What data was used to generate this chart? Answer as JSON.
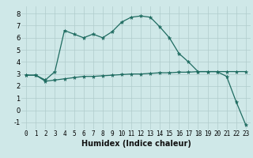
{
  "title": "",
  "xlabel": "Humidex (Indice chaleur)",
  "background_color": "#cfe8e8",
  "line_color": "#1e6b60",
  "x_ticks": [
    0,
    1,
    2,
    3,
    4,
    5,
    6,
    7,
    8,
    9,
    10,
    11,
    12,
    13,
    14,
    15,
    16,
    17,
    18,
    19,
    20,
    21,
    22,
    23
  ],
  "ylim": [
    -1.6,
    8.6
  ],
  "xlim": [
    -0.5,
    23.5
  ],
  "series1_x": [
    0,
    1,
    2,
    3,
    4,
    5,
    6,
    7,
    8,
    9,
    10,
    11,
    12,
    13,
    14,
    15,
    16,
    17,
    18,
    19,
    20,
    21,
    22,
    23
  ],
  "series1_y": [
    2.9,
    2.9,
    2.5,
    3.2,
    6.6,
    6.3,
    6.0,
    6.3,
    6.0,
    6.5,
    7.3,
    7.7,
    7.8,
    7.7,
    6.9,
    6.0,
    4.7,
    4.0,
    3.2,
    3.2,
    3.2,
    2.8,
    0.7,
    -1.2
  ],
  "series2_x": [
    0,
    1,
    2,
    3,
    4,
    5,
    6,
    7,
    8,
    9,
    10,
    11,
    12,
    13,
    14,
    15,
    16,
    17,
    18,
    19,
    20,
    21,
    22,
    23
  ],
  "series2_y": [
    2.9,
    2.9,
    2.4,
    2.5,
    2.6,
    2.7,
    2.8,
    2.8,
    2.85,
    2.9,
    2.95,
    3.0,
    3.0,
    3.05,
    3.1,
    3.1,
    3.15,
    3.15,
    3.2,
    3.2,
    3.2,
    3.2,
    3.2,
    3.2
  ],
  "yticks": [
    -1,
    0,
    1,
    2,
    3,
    4,
    5,
    6,
    7,
    8
  ],
  "grid_color": "#b0cccc",
  "tick_fontsize": 5.5,
  "xlabel_fontsize": 7
}
